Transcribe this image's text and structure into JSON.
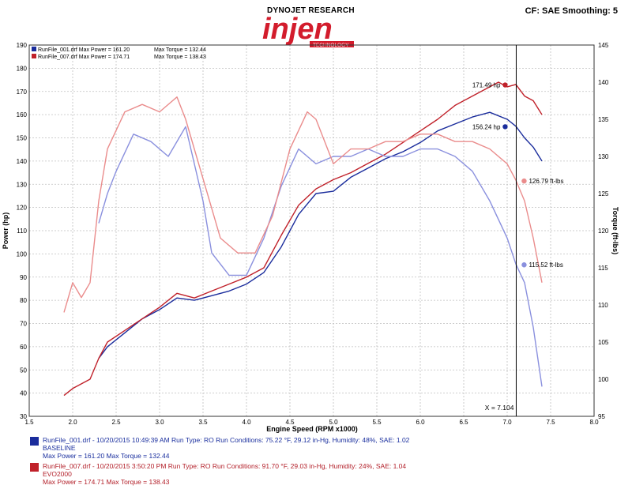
{
  "header": {
    "dyno_title": "DYNOJET RESEARCH",
    "cf_smoothing": "CF: SAE  Smoothing: 5",
    "logo_text": "injen",
    "logo_subtext": "TECHNOLOGY"
  },
  "colors": {
    "run1_power": "#1a2c9c",
    "run1_torque": "#8a90de",
    "run2_power": "#c0212a",
    "run2_torque": "#ea8c8c",
    "grid": "#bfbfbf",
    "logo": "#d31c2c"
  },
  "top_legend": [
    {
      "text": "RunFile_001.drf Max Power = 161.20",
      "text2": "Max Torque = 132.44"
    },
    {
      "text": "RunFile_007.drf Max Power = 174.71",
      "text2": "Max Torque = 138.43"
    }
  ],
  "bottom_legend": [
    {
      "line1": "RunFile_001.drf - 10/20/2015 10:49:39 AM  Run Type: RO  Run Conditions: 75.22 °F, 29.12 in-Hg,  Humidity:  48%, SAE: 1.02",
      "line2": "BASELINE",
      "line3": "Max Power = 161.20  Max Torque = 132.44"
    },
    {
      "line1": "RunFile_007.drf - 10/20/2015 3:50:20 PM  Run Type: RO  Run Conditions: 91.70 °F, 29.03 in-Hg,  Humidity:  24%, SAE: 1.04",
      "line2": "EVO2000",
      "line3": "Max Power = 174.71  Max Torque = 138.43"
    }
  ],
  "chart_data": {
    "type": "line",
    "xlabel": "Engine Speed (RPM x1000)",
    "ylabel_left": "Power (hp)",
    "ylabel_right": "Torque (ft-lbs)",
    "xlim": [
      1.5,
      8.0
    ],
    "ylim_left": [
      30,
      190
    ],
    "ylim_right": [
      95,
      145
    ],
    "x_ticks": [
      "1.5",
      "2.0",
      "2.5",
      "3.0",
      "3.5",
      "4.0",
      "4.5",
      "5.0",
      "5.5",
      "6.0",
      "6.5",
      "7.0",
      "7.5",
      "8.0"
    ],
    "y_left_ticks": [
      "30",
      "40",
      "50",
      "60",
      "70",
      "80",
      "90",
      "100",
      "110",
      "120",
      "130",
      "140",
      "150",
      "160",
      "170",
      "180",
      "190"
    ],
    "y_right_ticks": [
      "95",
      "100",
      "105",
      "110",
      "115",
      "120",
      "125",
      "130",
      "135",
      "140",
      "145"
    ],
    "grid": true,
    "cursor": {
      "x": 7.104,
      "label": "X = 7.104"
    },
    "markers": [
      {
        "series": "run2_power",
        "label": "171.49 hp"
      },
      {
        "series": "run1_power",
        "label": "156.24 hp"
      },
      {
        "series": "run2_torque",
        "label": "126.79 ft-lbs"
      },
      {
        "series": "run1_torque",
        "label": "115.52 ft-lbs"
      }
    ],
    "series": [
      {
        "name": "RunFile_001.drf Power",
        "axis": "left",
        "color_key": "run1_power",
        "x": [
          2.3,
          2.4,
          2.6,
          2.8,
          3.0,
          3.2,
          3.4,
          3.6,
          3.8,
          4.0,
          4.2,
          4.4,
          4.6,
          4.8,
          5.0,
          5.2,
          5.4,
          5.6,
          5.8,
          6.0,
          6.2,
          6.4,
          6.6,
          6.8,
          7.0,
          7.1,
          7.2,
          7.3,
          7.4
        ],
        "y": [
          55,
          60,
          66,
          72,
          76,
          81,
          80,
          82,
          84,
          87,
          92,
          103,
          117,
          126,
          127,
          133,
          137,
          141,
          144,
          148,
          153,
          156,
          159,
          161,
          158,
          155,
          150,
          146,
          140
        ]
      },
      {
        "name": "RunFile_007.drf Power",
        "axis": "left",
        "color_key": "run2_power",
        "x": [
          1.9,
          2.0,
          2.2,
          2.3,
          2.4,
          2.6,
          2.8,
          3.0,
          3.2,
          3.4,
          3.6,
          3.8,
          4.0,
          4.2,
          4.4,
          4.6,
          4.8,
          5.0,
          5.2,
          5.4,
          5.6,
          5.8,
          6.0,
          6.2,
          6.4,
          6.6,
          6.8,
          6.9,
          7.0,
          7.1,
          7.2,
          7.3,
          7.4
        ],
        "y": [
          39,
          42,
          46,
          55,
          62,
          67,
          72,
          77,
          83,
          81,
          84,
          87,
          90,
          94,
          108,
          121,
          128,
          132,
          135,
          139,
          143,
          148,
          153,
          158,
          164,
          168,
          172,
          174,
          172,
          173,
          168,
          166,
          160
        ]
      },
      {
        "name": "RunFile_001.drf Torque",
        "axis": "right",
        "color_key": "run1_torque",
        "x": [
          2.3,
          2.4,
          2.5,
          2.7,
          2.9,
          3.1,
          3.3,
          3.5,
          3.6,
          3.8,
          4.0,
          4.2,
          4.4,
          4.6,
          4.8,
          5.0,
          5.2,
          5.4,
          5.6,
          5.8,
          6.0,
          6.2,
          6.4,
          6.6,
          6.8,
          7.0,
          7.1,
          7.2,
          7.3,
          7.4
        ],
        "y": [
          121,
          125,
          128,
          133,
          132,
          130,
          134,
          124,
          117,
          114,
          114,
          119,
          126,
          131,
          129,
          130,
          130,
          131,
          130,
          130,
          131,
          131,
          130,
          128,
          124,
          119,
          115.5,
          113,
          107,
          99
        ]
      },
      {
        "name": "RunFile_007.drf Torque",
        "axis": "right",
        "color_key": "run2_torque",
        "x": [
          1.9,
          2.0,
          2.1,
          2.2,
          2.3,
          2.4,
          2.6,
          2.8,
          3.0,
          3.2,
          3.3,
          3.5,
          3.7,
          3.9,
          4.1,
          4.3,
          4.5,
          4.7,
          4.8,
          5.0,
          5.2,
          5.4,
          5.6,
          5.8,
          6.0,
          6.2,
          6.4,
          6.6,
          6.8,
          7.0,
          7.1,
          7.2,
          7.3,
          7.4
        ],
        "y": [
          109,
          113,
          111,
          113,
          124,
          131,
          136,
          137,
          136,
          138,
          135,
          127,
          119,
          117,
          117,
          122,
          131,
          136,
          135,
          129,
          131,
          131,
          132,
          132,
          133,
          133,
          132,
          132,
          131,
          129,
          126.8,
          124,
          119,
          113
        ]
      }
    ]
  }
}
